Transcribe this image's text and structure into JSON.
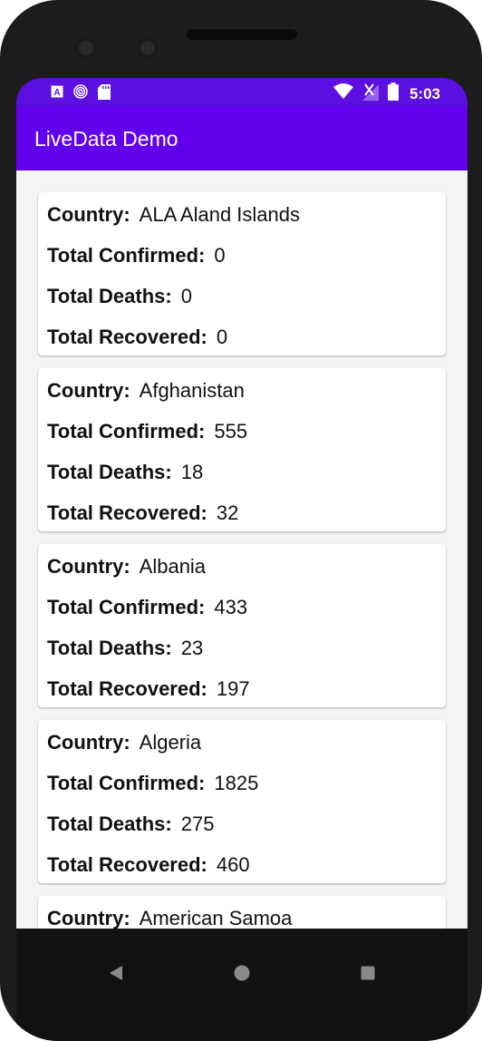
{
  "status_bar": {
    "time": "5:03",
    "left_icons": [
      "a-notification-icon",
      "spinner-notification-icon",
      "sd-card-icon"
    ],
    "right_icons": [
      "wifi-icon",
      "no-signal-icon",
      "battery-icon"
    ]
  },
  "app_bar": {
    "title": "LiveData Demo"
  },
  "labels": {
    "country": "Country:",
    "confirmed": "Total Confirmed:",
    "deaths": "Total Deaths:",
    "recovered": "Total Recovered:"
  },
  "countries": [
    {
      "country": "ALA Aland Islands",
      "confirmed": "0",
      "deaths": "0",
      "recovered": "0"
    },
    {
      "country": "Afghanistan",
      "confirmed": "555",
      "deaths": "18",
      "recovered": "32"
    },
    {
      "country": "Albania",
      "confirmed": "433",
      "deaths": "23",
      "recovered": "197"
    },
    {
      "country": "Algeria",
      "confirmed": "1825",
      "deaths": "275",
      "recovered": "460"
    },
    {
      "country": "American Samoa",
      "confirmed": "",
      "deaths": "",
      "recovered": ""
    }
  ],
  "nav_bar": {
    "buttons": [
      "back-icon",
      "home-icon",
      "recents-icon"
    ]
  },
  "colors": {
    "status_bar": "#5b0fe0",
    "app_bar": "#6200ee",
    "list_bg": "#f4f4f4"
  }
}
